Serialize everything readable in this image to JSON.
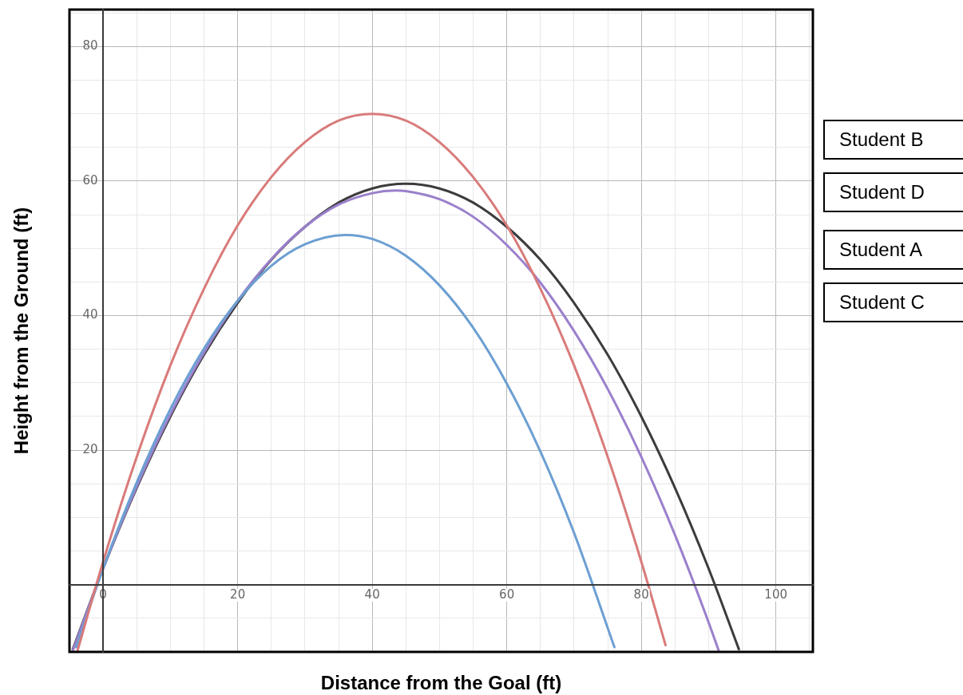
{
  "chart_data": {
    "type": "line",
    "xlabel": "Distance from the Goal (ft)",
    "ylabel": "Height from the Ground (ft)",
    "xlim": [
      -5,
      105.5
    ],
    "ylim": [
      -10,
      85.5
    ],
    "xticks": [
      {
        "value": -5,
        "label": null
      },
      {
        "value": 0,
        "label": "0"
      },
      {
        "value": 5,
        "label": null
      },
      {
        "value": 10,
        "label": null
      },
      {
        "value": 15,
        "label": null
      },
      {
        "value": 20,
        "label": "20"
      },
      {
        "value": 25,
        "label": null
      },
      {
        "value": 30,
        "label": null
      },
      {
        "value": 35,
        "label": null
      },
      {
        "value": 40,
        "label": "40"
      },
      {
        "value": 45,
        "label": null
      },
      {
        "value": 50,
        "label": null
      },
      {
        "value": 55,
        "label": null
      },
      {
        "value": 60,
        "label": "60"
      },
      {
        "value": 65,
        "label": null
      },
      {
        "value": 70,
        "label": null
      },
      {
        "value": 75,
        "label": null
      },
      {
        "value": 80,
        "label": "80"
      },
      {
        "value": 85,
        "label": null
      },
      {
        "value": 90,
        "label": null
      },
      {
        "value": 95,
        "label": null
      },
      {
        "value": 100,
        "label": "100"
      },
      {
        "value": 105,
        "label": null
      }
    ],
    "yticks": [
      {
        "value": -5,
        "label": null
      },
      {
        "value": 0,
        "label": null
      },
      {
        "value": 5,
        "label": null
      },
      {
        "value": 10,
        "label": null
      },
      {
        "value": 15,
        "label": null
      },
      {
        "value": 20,
        "label": "20"
      },
      {
        "value": 25,
        "label": null
      },
      {
        "value": 30,
        "label": null
      },
      {
        "value": 35,
        "label": null
      },
      {
        "value": 40,
        "label": "40"
      },
      {
        "value": 45,
        "label": null
      },
      {
        "value": 50,
        "label": null
      },
      {
        "value": 55,
        "label": null
      },
      {
        "value": 60,
        "label": "60"
      },
      {
        "value": 65,
        "label": null
      },
      {
        "value": 70,
        "label": null
      },
      {
        "value": 75,
        "label": null
      },
      {
        "value": 80,
        "label": "80"
      },
      {
        "value": 85,
        "label": null
      }
    ],
    "grid": true,
    "legend": false,
    "marker": "none",
    "line_style": "solid",
    "series": [
      {
        "color": "#d97a7a",
        "x": [
          -3.8,
          0,
          5,
          10,
          15,
          20,
          25,
          30,
          35,
          40,
          45,
          50,
          55,
          60,
          65,
          70,
          75,
          80,
          83.6
        ],
        "values": [
          -9.8,
          3.4,
          19.0,
          32.6,
          44.0,
          53.4,
          60.6,
          65.8,
          69.0,
          70,
          69.0,
          65.8,
          60.6,
          53.4,
          44.0,
          32.6,
          19.0,
          3.4,
          -9
        ]
      },
      {
        "color": "#6c9fd2",
        "x": [
          -4,
          0,
          5,
          10,
          15,
          20,
          25,
          30,
          36,
          40,
          45,
          50,
          55,
          60,
          65,
          70,
          76
        ],
        "values": [
          -9.3,
          2.4,
          15.2,
          26.1,
          35.1,
          42.2,
          47.4,
          50.6,
          52,
          51.4,
          48.9,
          44.5,
          38.2,
          29.9,
          19.8,
          7.7,
          -9.3
        ]
      },
      {
        "color": "#9a80cc",
        "x": [
          -4.5,
          0,
          5,
          10,
          15,
          20,
          25,
          30,
          35,
          40,
          43.5,
          45,
          50,
          55,
          60,
          65,
          70,
          75,
          80,
          85,
          90,
          91.5
        ],
        "values": [
          -9.8,
          2.4,
          14.6,
          25.3,
          34.5,
          42.2,
          48.4,
          53.2,
          56.5,
          58.2,
          58.6,
          58.5,
          57.3,
          54.7,
          50.5,
          44.9,
          37.7,
          29.1,
          19.0,
          7.4,
          -5.6,
          -9.8
        ]
      },
      {
        "color": "#3c3c3c",
        "x": [
          -4.5,
          0,
          5,
          10,
          15,
          20,
          25,
          30,
          35,
          40,
          45,
          50,
          55,
          60,
          65,
          70,
          75,
          80,
          85,
          90,
          94.5
        ],
        "values": [
          -9.6,
          2.4,
          14.4,
          25.0,
          34.2,
          41.9,
          48.3,
          53.2,
          56.8,
          58.9,
          59.6,
          58.9,
          56.8,
          53.2,
          48.3,
          41.9,
          34.2,
          25.0,
          14.4,
          2.4,
          -9.6
        ]
      }
    ],
    "annotations": [
      "Student B",
      "Student D",
      "Student A",
      "Student C"
    ]
  }
}
